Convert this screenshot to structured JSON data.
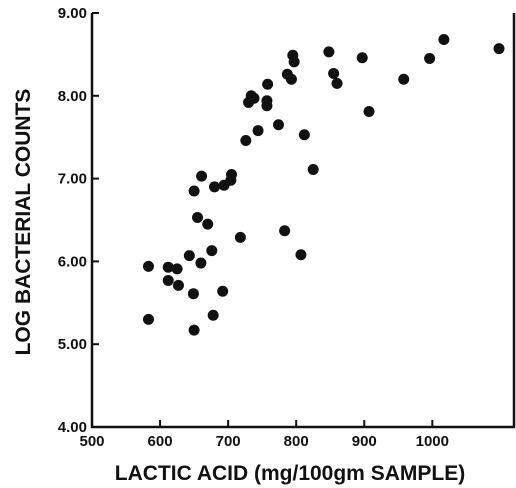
{
  "chart_data": {
    "type": "scatter",
    "title": "",
    "xlabel": "LACTIC  ACID (mg/100gm SAMPLE)",
    "ylabel": "LOG BACTERIAL COUNTS",
    "xlim": [
      500,
      1120
    ],
    "ylim": [
      4.0,
      9.0
    ],
    "x_ticks": [
      500,
      600,
      700,
      800,
      900,
      1000
    ],
    "x_tick_labels": [
      "500",
      "600",
      "700",
      "800",
      "900",
      "1000"
    ],
    "y_ticks": [
      4.0,
      5.0,
      6.0,
      7.0,
      8.0,
      9.0
    ],
    "y_tick_labels": [
      "4.00",
      "5.00",
      "6.00",
      "7.00",
      "8.00",
      "9.00"
    ],
    "grid": false,
    "legend": "none",
    "marker_color": "#111111",
    "series": [
      {
        "points": [
          [
            583,
            5.94
          ],
          [
            583,
            5.3
          ],
          [
            612,
            5.93
          ],
          [
            612,
            5.77
          ],
          [
            625,
            5.91
          ],
          [
            627,
            5.71
          ],
          [
            643,
            6.07
          ],
          [
            649,
            5.61
          ],
          [
            650,
            5.17
          ],
          [
            650,
            6.85
          ],
          [
            655,
            6.53
          ],
          [
            660,
            5.98
          ],
          [
            661,
            7.03
          ],
          [
            670,
            6.45
          ],
          [
            676,
            6.13
          ],
          [
            678,
            5.35
          ],
          [
            680,
            6.9
          ],
          [
            692,
            5.64
          ],
          [
            694,
            6.92
          ],
          [
            704,
            6.98
          ],
          [
            705,
            7.05
          ],
          [
            718,
            6.29
          ],
          [
            726,
            7.46
          ],
          [
            730,
            7.92
          ],
          [
            734,
            8.0
          ],
          [
            738,
            7.97
          ],
          [
            744,
            7.58
          ],
          [
            757,
            7.88
          ],
          [
            757,
            7.94
          ],
          [
            758,
            8.14
          ],
          [
            774,
            7.65
          ],
          [
            783,
            6.37
          ],
          [
            787,
            8.26
          ],
          [
            793,
            8.2
          ],
          [
            795,
            8.49
          ],
          [
            797,
            8.41
          ],
          [
            807,
            6.08
          ],
          [
            812,
            7.53
          ],
          [
            825,
            7.11
          ],
          [
            848,
            8.53
          ],
          [
            855,
            8.27
          ],
          [
            860,
            8.15
          ],
          [
            897,
            8.46
          ],
          [
            907,
            7.81
          ],
          [
            958,
            8.2
          ],
          [
            996,
            8.45
          ],
          [
            1017,
            8.68
          ],
          [
            1098,
            8.57
          ]
        ]
      }
    ]
  }
}
